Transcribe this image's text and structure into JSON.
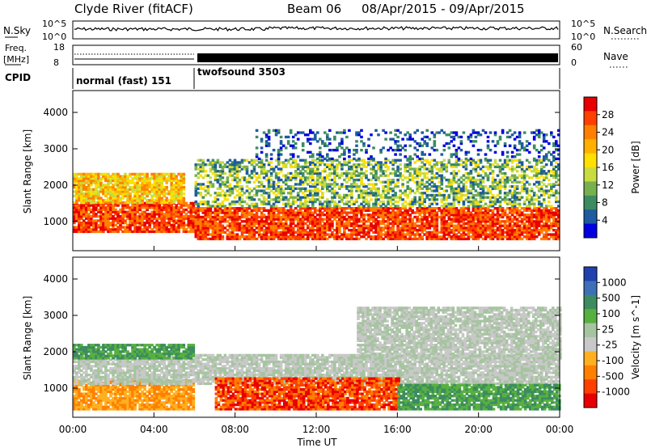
{
  "header": {
    "station": "Clyde River (fitACF)",
    "beam": "Beam 06",
    "date_range": "08/Apr/2015 - 09/Apr/2015"
  },
  "top_panels": {
    "nsky_label": "N.Sky",
    "nsky_ticks": [
      "10^5",
      "10^0"
    ],
    "nsearch_label": "N.Search",
    "nsearch_ticks": [
      "10^5",
      "10^0"
    ],
    "freq_label_line1": "Freq.",
    "freq_label_line2": "[MHz]",
    "freq_ticks": [
      "18",
      "8"
    ],
    "nave_label": "Nave",
    "nave_ticks": [
      "60",
      "0"
    ],
    "cpid_label": "CPID",
    "cpid_segments": [
      {
        "name": "normal (fast) 151",
        "start_h": 0,
        "end_h": 6
      },
      {
        "name": "twofsound 3503",
        "start_h": 6,
        "end_h": 24
      }
    ]
  },
  "colorbars": {
    "power": {
      "label": "Power [dB]",
      "ticks": [
        "28",
        "24",
        "20",
        "16",
        "12",
        "8",
        "4"
      ],
      "colors": [
        "#e80000",
        "#ff4000",
        "#ff8000",
        "#ffb000",
        "#ffe000",
        "#c8dc40",
        "#78b050",
        "#3c8c60",
        "#1e5aa0",
        "#0000e0"
      ]
    },
    "velocity": {
      "label": "Velocity [m s^-1]",
      "ticks": [
        "1000",
        "500",
        "100",
        "25",
        "-25",
        "-100",
        "-500",
        "-1000"
      ],
      "colors": [
        "#2040b0",
        "#3e70b8",
        "#3c8c60",
        "#58b040",
        "#a6c4a0",
        "#c8c8c8",
        "#ffb020",
        "#ff8000",
        "#ff4000",
        "#e80000"
      ]
    }
  },
  "chart_data": [
    {
      "type": "heatmap",
      "panel": "power",
      "ylabel": "Slant Range [km]",
      "y_ticks": [
        "4000",
        "3000",
        "2000",
        "1000"
      ],
      "ylim": [
        200,
        4600
      ],
      "xlim": [
        0,
        24
      ],
      "bands": [
        {
          "start_h": 0,
          "end_h": 6,
          "r_lo": 700,
          "r_hi": 1500,
          "level": "strong"
        },
        {
          "start_h": 0,
          "end_h": 5.5,
          "r_lo": 1500,
          "r_hi": 2300,
          "level": "medium"
        },
        {
          "start_h": 6,
          "end_h": 24,
          "r_lo": 500,
          "r_hi": 1400,
          "level": "strong"
        },
        {
          "start_h": 6,
          "end_h": 24,
          "r_lo": 1400,
          "r_hi": 2700,
          "level": "weak"
        },
        {
          "start_h": 9,
          "end_h": 24,
          "r_lo": 2700,
          "r_hi": 3500,
          "level": "sparse"
        }
      ]
    },
    {
      "type": "heatmap",
      "panel": "velocity",
      "ylabel": "Slant Range [km]",
      "y_ticks": [
        "4000",
        "3000",
        "2000",
        "1000"
      ],
      "ylim": [
        200,
        4600
      ],
      "xlim": [
        0,
        24
      ],
      "bands": [
        {
          "start_h": 0,
          "end_h": 6,
          "r_lo": 400,
          "r_hi": 1200,
          "level": "orange"
        },
        {
          "start_h": 0,
          "end_h": 24,
          "r_lo": 1100,
          "r_hi": 1900,
          "level": "gray"
        },
        {
          "start_h": 0,
          "end_h": 6,
          "r_lo": 1800,
          "r_hi": 2200,
          "level": "green"
        },
        {
          "start_h": 7,
          "end_h": 16,
          "r_lo": 400,
          "r_hi": 1300,
          "level": "red-orange"
        },
        {
          "start_h": 16,
          "end_h": 24,
          "r_lo": 400,
          "r_hi": 1100,
          "level": "green"
        },
        {
          "start_h": 14,
          "end_h": 24,
          "r_lo": 1800,
          "r_hi": 3200,
          "level": "gray"
        }
      ]
    }
  ],
  "x_axis": {
    "label": "Time UT",
    "ticks": [
      "00:00",
      "04:00",
      "08:00",
      "12:00",
      "16:00",
      "20:00",
      "00:00"
    ]
  }
}
